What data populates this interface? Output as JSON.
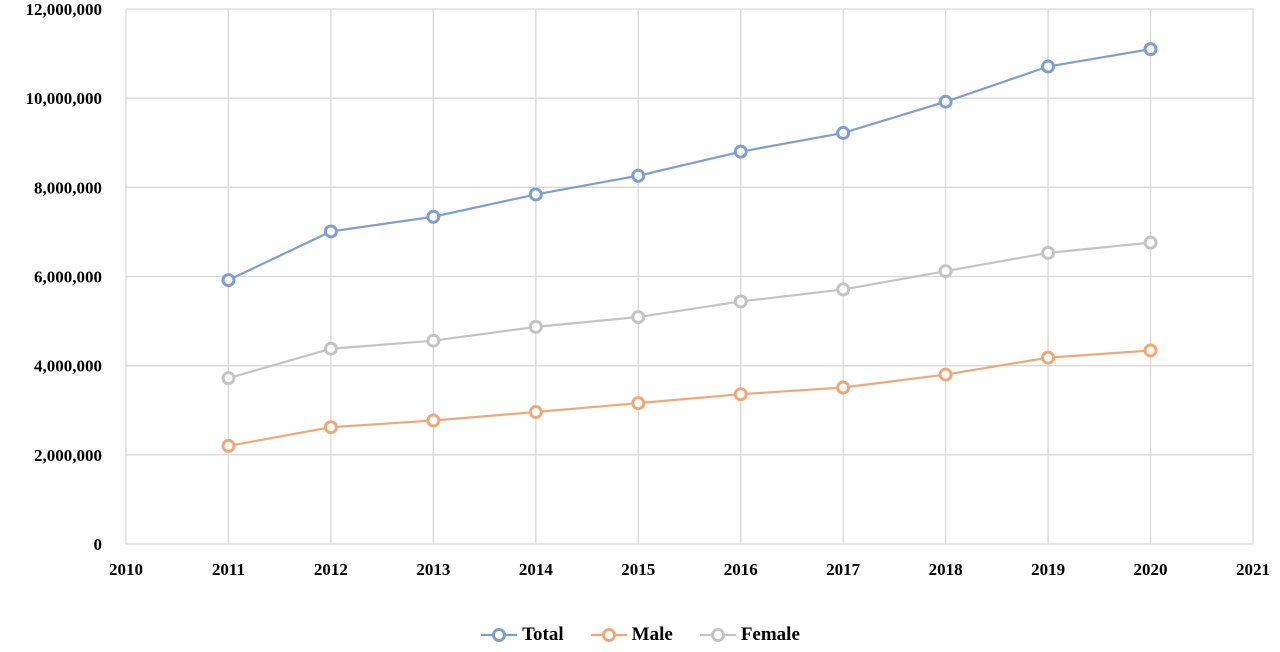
{
  "chart_data": {
    "type": "line",
    "title": "",
    "xlabel": "",
    "ylabel": "",
    "x": [
      2011,
      2012,
      2013,
      2014,
      2015,
      2016,
      2017,
      2018,
      2019,
      2020
    ],
    "xlim": [
      2010,
      2021
    ],
    "ylim": [
      0,
      12000000
    ],
    "x_ticks": [
      "2010",
      "2011",
      "2012",
      "2013",
      "2014",
      "2015",
      "2016",
      "2017",
      "2018",
      "2019",
      "2020",
      "2021"
    ],
    "y_ticks": [
      "0",
      "2,000,000",
      "4,000,000",
      "6,000,000",
      "8,000,000",
      "10,000,000",
      "12,000,000"
    ],
    "grid": true,
    "legend_position": "bottom",
    "series": [
      {
        "name": "Total",
        "color": "#7f9fd1",
        "values": [
          5920000,
          7010000,
          7340000,
          7840000,
          8260000,
          8800000,
          9220000,
          9920000,
          10710000,
          11100000
        ]
      },
      {
        "name": "Male",
        "color": "#f0a878",
        "values": [
          2200000,
          2620000,
          2770000,
          2960000,
          3160000,
          3360000,
          3510000,
          3800000,
          4180000,
          4340000
        ]
      },
      {
        "name": "Female",
        "color": "#c4c4c4",
        "values": [
          3720000,
          4380000,
          4560000,
          4870000,
          5090000,
          5440000,
          5710000,
          6120000,
          6530000,
          6760000
        ]
      }
    ]
  }
}
